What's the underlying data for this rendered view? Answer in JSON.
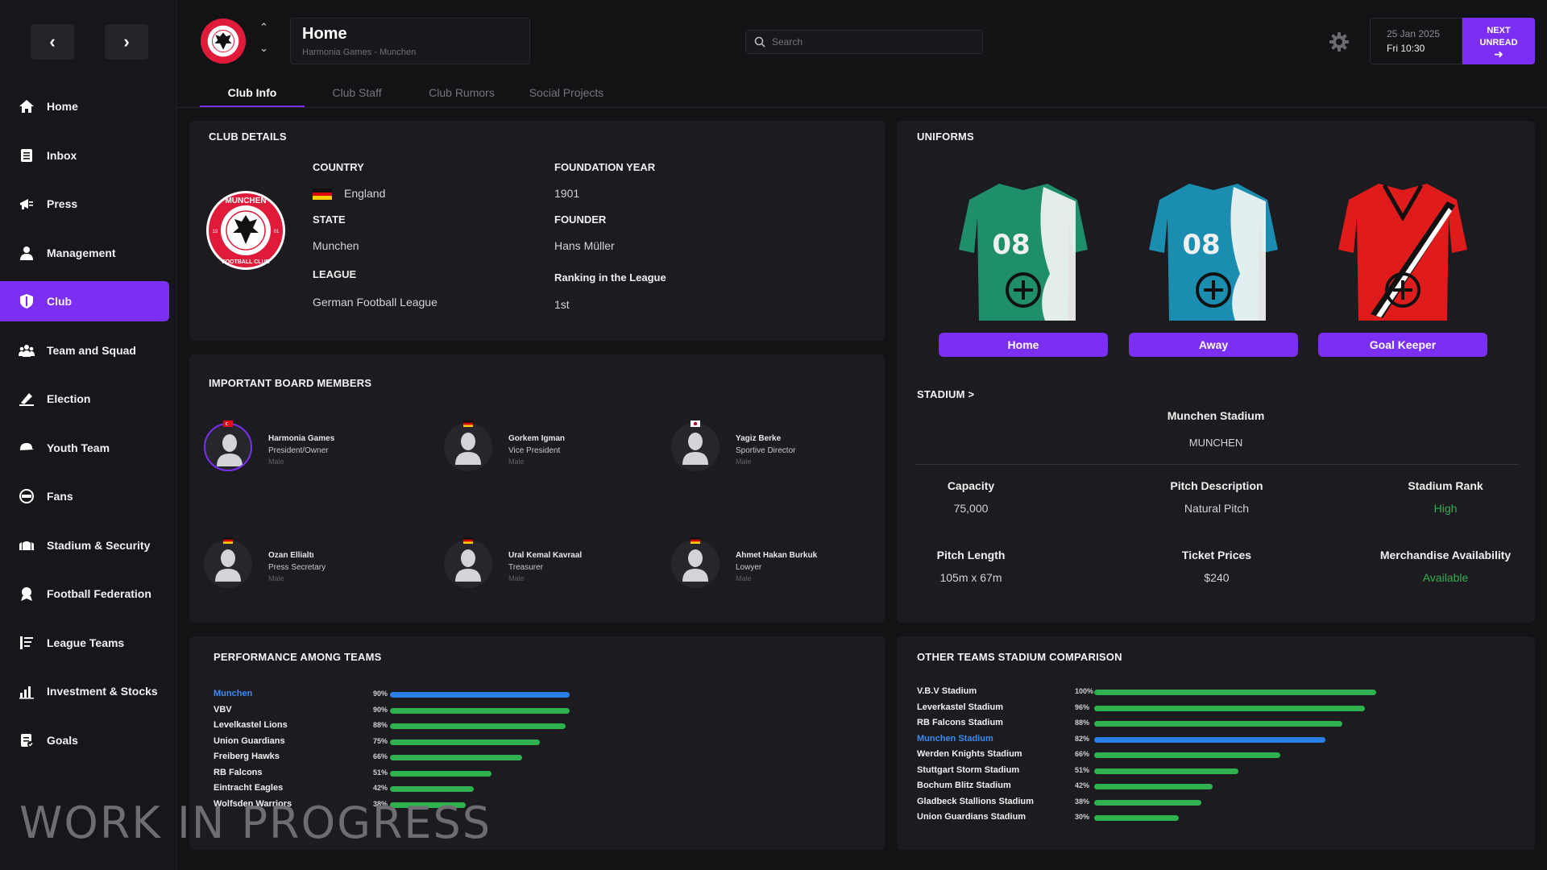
{
  "nav": {
    "back_icon": "chevron-left-icon",
    "forward_icon": "chevron-right-icon"
  },
  "sidebar": {
    "items": [
      {
        "label": "Home",
        "icon": "home-icon",
        "active": false
      },
      {
        "label": "Inbox",
        "icon": "inbox-icon",
        "active": false
      },
      {
        "label": "Press",
        "icon": "megaphone-icon",
        "active": false
      },
      {
        "label": "Management",
        "icon": "person-icon",
        "active": false
      },
      {
        "label": "Club",
        "icon": "shield-icon",
        "active": true
      },
      {
        "label": "Team and Squad",
        "icon": "team-icon",
        "active": false
      },
      {
        "label": "Election",
        "icon": "ballot-icon",
        "active": false
      },
      {
        "label": "Youth Team",
        "icon": "cap-icon",
        "active": false
      },
      {
        "label": "Fans",
        "icon": "fans-icon",
        "active": false
      },
      {
        "label": "Stadium & Security",
        "icon": "stadium-icon",
        "active": false
      },
      {
        "label": "Football Federation",
        "icon": "federation-icon",
        "active": false
      },
      {
        "label": "League Teams",
        "icon": "list-icon",
        "active": false
      },
      {
        "label": "Investment & Stocks",
        "icon": "chart-icon",
        "active": false
      },
      {
        "label": "Goals",
        "icon": "goals-icon",
        "active": false
      }
    ]
  },
  "header": {
    "title": "Home",
    "subtitle": "Harmonia Games - Munchen",
    "search_placeholder": "Search",
    "date": "25 Jan 2025",
    "time": "Fri 10:30",
    "next_label_1": "NEXT",
    "next_label_2": "UNREAD"
  },
  "tabs": [
    "Club Info",
    "Club Staff",
    "Club Rumors",
    "Social Projects"
  ],
  "club_details": {
    "title": "CLUB DETAILS",
    "country_label": "COUNTRY",
    "country": "England",
    "state_label": "STATE",
    "state": "Munchen",
    "league_label": "LEAGUE",
    "league": "German Football League",
    "foundation_label": "FOUNDATION YEAR",
    "foundation": "1901",
    "founder_label": "FOUNDER",
    "founder": "Hans Müller",
    "ranking_label": "Ranking in the League",
    "ranking": "1st",
    "logo_text_top": "MUNCHEN",
    "logo_text_bottom": "FOOTBALL CLUB",
    "logo_left": "19",
    "logo_right": "01"
  },
  "board": {
    "title": "IMPORTANT BOARD MEMBERS",
    "members": [
      {
        "name": "Harmonia Games",
        "role": "President/Owner",
        "gender": "Male",
        "flag": "turkey"
      },
      {
        "name": "Gorkem Igman",
        "role": "Vice President",
        "gender": "Male",
        "flag": "germany"
      },
      {
        "name": "Yagiz Berke",
        "role": "Sportive Director",
        "gender": "Male",
        "flag": "japan"
      },
      {
        "name": "Ozan Ellialtı",
        "role": "Press Secretary",
        "gender": "Male",
        "flag": "germany"
      },
      {
        "name": "Ural Kemal Kavraal",
        "role": "Treasurer",
        "gender": "Male",
        "flag": "germany"
      },
      {
        "name": "Ahmet Hakan Burkuk",
        "role": "Lowyer",
        "gender": "Male",
        "flag": "germany"
      }
    ]
  },
  "uniforms": {
    "title": "UNIFORMS",
    "kits": [
      {
        "label": "Home",
        "number": "08",
        "color": "#1f8f6b"
      },
      {
        "label": "Away",
        "number": "08",
        "color": "#1a8db0"
      },
      {
        "label": "Goal Keeper",
        "number": "",
        "color": "#e01b1b"
      }
    ]
  },
  "stadium": {
    "title": "STADIUM  >",
    "name": "Munchen Stadium",
    "city": "MUNCHEN",
    "stats": [
      {
        "label": "Capacity",
        "value": "75,000",
        "accent": false
      },
      {
        "label": "Pitch Description",
        "value": "Natural Pitch",
        "accent": false
      },
      {
        "label": "Stadium Rank",
        "value": "High",
        "accent": true
      },
      {
        "label": "Pitch Length",
        "value": "105m x 67m",
        "accent": false
      },
      {
        "label": "Ticket Prices",
        "value": "$240",
        "accent": false
      },
      {
        "label": "Merchandise Availability",
        "value": "Available",
        "accent": true
      }
    ]
  },
  "performance": {
    "title": "PERFORMANCE AMONG TEAMS",
    "rows": [
      {
        "name": "Munchen",
        "pct": "90%",
        "value": 90,
        "highlight": true
      },
      {
        "name": "VBV",
        "pct": "90%",
        "value": 90,
        "highlight": false
      },
      {
        "name": "Levelkastel Lions",
        "pct": "88%",
        "value": 88,
        "highlight": false
      },
      {
        "name": "Union Guardians",
        "pct": "75%",
        "value": 75,
        "highlight": false
      },
      {
        "name": "Freiberg Hawks",
        "pct": "66%",
        "value": 66,
        "highlight": false
      },
      {
        "name": "RB Falcons",
        "pct": "51%",
        "value": 51,
        "highlight": false
      },
      {
        "name": "Eintracht Eagles",
        "pct": "42%",
        "value": 42,
        "highlight": false
      },
      {
        "name": "Wolfsden Warriors",
        "pct": "38%",
        "value": 38,
        "highlight": false
      }
    ]
  },
  "stadium_comparison": {
    "title": "OTHER TEAMS STADIUM COMPARISON",
    "rows": [
      {
        "name": "V.B.V Stadium",
        "pct": "100%",
        "value": 100,
        "highlight": false
      },
      {
        "name": "Leverkastel Stadium",
        "pct": "96%",
        "value": 96,
        "highlight": false
      },
      {
        "name": "RB Falcons Stadium",
        "pct": "88%",
        "value": 88,
        "highlight": false
      },
      {
        "name": "Munchen Stadium",
        "pct": "82%",
        "value": 82,
        "highlight": true
      },
      {
        "name": "Werden Knights Stadium",
        "pct": "66%",
        "value": 66,
        "highlight": false
      },
      {
        "name": "Stuttgart Storm Stadium",
        "pct": "51%",
        "value": 51,
        "highlight": false
      },
      {
        "name": "Bochum Blitz Stadium",
        "pct": "42%",
        "value": 42,
        "highlight": false
      },
      {
        "name": "Gladbeck Stallions Stadium",
        "pct": "38%",
        "value": 38,
        "highlight": false
      },
      {
        "name": "Union Guardians Stadium",
        "pct": "30%",
        "value": 30,
        "highlight": false
      }
    ]
  },
  "watermark": "WORK IN PROGRESS",
  "colors": {
    "accent": "#7b2ff2",
    "bar_green": "#2fb14f",
    "bar_blue": "#2b7fe6",
    "positive": "#2fb14f"
  }
}
